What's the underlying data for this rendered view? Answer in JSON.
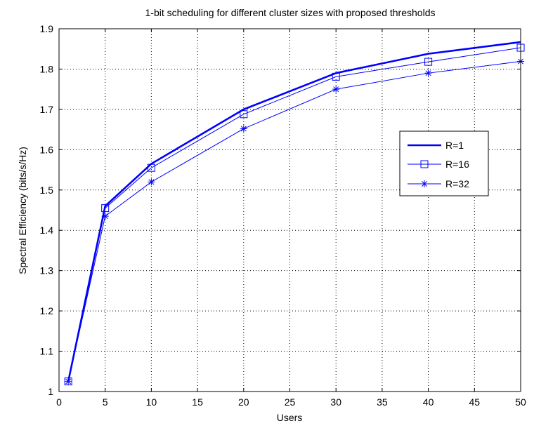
{
  "chart_data": {
    "type": "line",
    "title": "1-bit scheduling for different cluster sizes with proposed thresholds",
    "xlabel": "Users",
    "ylabel": "Spectral Efficiency (bits/s/Hz)",
    "xlim": [
      0,
      50
    ],
    "ylim": [
      1,
      1.9
    ],
    "xticks": [
      0,
      5,
      10,
      15,
      20,
      25,
      30,
      35,
      40,
      45,
      50
    ],
    "yticks": [
      1,
      1.1,
      1.2,
      1.3,
      1.4,
      1.5,
      1.6,
      1.7,
      1.8,
      1.9
    ],
    "xtick_labels": [
      "0",
      "5",
      "10",
      "15",
      "20",
      "25",
      "30",
      "35",
      "40",
      "45",
      "50"
    ],
    "ytick_labels": [
      "1",
      "1.1",
      "1.2",
      "1.3",
      "1.4",
      "1.5",
      "1.6",
      "1.7",
      "1.8",
      "1.9"
    ],
    "grid": true,
    "legend_position": "right",
    "x": [
      1,
      5,
      10,
      20,
      30,
      40,
      50
    ],
    "series": [
      {
        "name": "R=1",
        "values": [
          1.025,
          1.46,
          1.565,
          1.7,
          1.79,
          1.838,
          1.867
        ],
        "marker": "none",
        "color": "#0000ff",
        "line": "thick"
      },
      {
        "name": "R=16",
        "values": [
          1.025,
          1.455,
          1.555,
          1.688,
          1.781,
          1.818,
          1.853
        ],
        "marker": "square",
        "color": "#0000ff",
        "line": "thin"
      },
      {
        "name": "R=32",
        "values": [
          1.025,
          1.435,
          1.52,
          1.652,
          1.75,
          1.79,
          1.819
        ],
        "marker": "star",
        "color": "#0000ff",
        "line": "thin"
      }
    ]
  }
}
